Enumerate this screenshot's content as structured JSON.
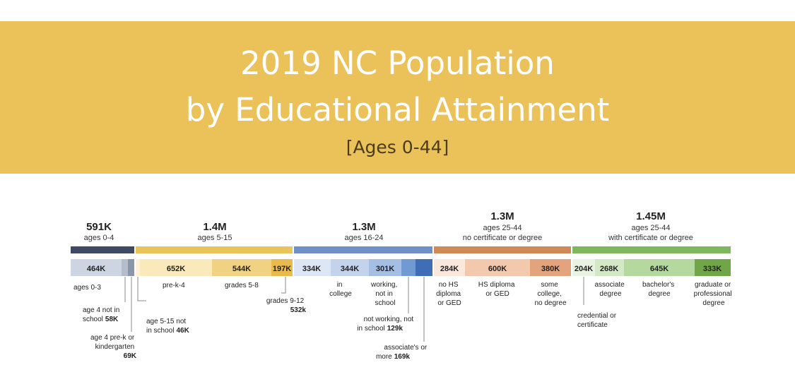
{
  "title": {
    "line1": "2019 NC Population",
    "line2": "by Educational Attainment",
    "subtitle": "[Ages 0-44]"
  },
  "colors": {
    "banner": "#ebc15a",
    "group_ages_0_4": "#3e4a63",
    "group_ages_5_15": "#e8c45a",
    "group_ages_16_24": "#6f91c8",
    "group_ages_25_44_no_cert": "#cf8a57",
    "group_ages_25_44_cert": "#7fb75f"
  },
  "chart_data": {
    "type": "bar",
    "orientation": "horizontal-stacked",
    "groups": [
      {
        "total": "591K",
        "label": "ages 0-4",
        "label2": ""
      },
      {
        "total": "1.4M",
        "label": "ages 5-15",
        "label2": ""
      },
      {
        "total": "1.3M",
        "label": "ages 16-24",
        "label2": ""
      },
      {
        "total": "1.3M",
        "label": "ages 25-44",
        "label2": "no certificate or degree"
      },
      {
        "total": "1.45M",
        "label": "ages 25-44",
        "label2": "with certificate or degree"
      }
    ],
    "segments": [
      {
        "value": 464,
        "label": "464K"
      },
      {
        "value": 58,
        "label": ""
      },
      {
        "value": 69,
        "label": ""
      },
      {
        "value": 652,
        "label": "652K"
      },
      {
        "value": 544,
        "label": "544K"
      },
      {
        "value": 197,
        "label": "197K"
      },
      {
        "value": 334,
        "label": "334K"
      },
      {
        "value": 344,
        "label": "344K"
      },
      {
        "value": 301,
        "label": "301K"
      },
      {
        "value": 129,
        "label": ""
      },
      {
        "value": 169,
        "label": ""
      },
      {
        "value": 284,
        "label": "284K"
      },
      {
        "value": 600,
        "label": "600K"
      },
      {
        "value": 380,
        "label": "380K"
      },
      {
        "value": 204,
        "label": "204K"
      },
      {
        "value": 268,
        "label": "268K"
      },
      {
        "value": 645,
        "label": "645K"
      },
      {
        "value": 333,
        "label": "333K"
      }
    ],
    "annotations": [
      {
        "l1": "ages 0-3",
        "l2": "",
        "l3": "",
        "bold": ""
      },
      {
        "l1": "age 4 not in",
        "l2": "school",
        "l3": "",
        "bold": "58K"
      },
      {
        "l1": "age 4 pre-k or",
        "l2": "kindergarten",
        "l3": "",
        "bold": "69K"
      },
      {
        "l1": "age 5-15 not",
        "l2": "in school",
        "l3": "",
        "bold": "46K"
      },
      {
        "l1": "pre-k-4",
        "l2": "",
        "l3": "",
        "bold": ""
      },
      {
        "l1": "grades 5-8",
        "l2": "",
        "l3": "",
        "bold": ""
      },
      {
        "l1": "grades 9-12",
        "l2": "",
        "l3": "",
        "bold": "532k"
      },
      {
        "l1": "in",
        "l2": "college",
        "l3": "",
        "bold": ""
      },
      {
        "l1": "working,",
        "l2": "not in",
        "l3": "school",
        "bold": ""
      },
      {
        "l1": "not working, not",
        "l2": "in school",
        "l3": "",
        "bold": "129k"
      },
      {
        "l1": "associate's or",
        "l2": "more",
        "l3": "",
        "bold": "169k"
      },
      {
        "l1": "no HS",
        "l2": "diploma",
        "l3": "or GED",
        "bold": ""
      },
      {
        "l1": "HS diploma",
        "l2": "or GED",
        "l3": "",
        "bold": ""
      },
      {
        "l1": "some",
        "l2": "college,",
        "l3": "no degree",
        "bold": ""
      },
      {
        "l1": "credential or",
        "l2": "certificate",
        "l3": "",
        "bold": ""
      },
      {
        "l1": "associate",
        "l2": "degree",
        "l3": "",
        "bold": ""
      },
      {
        "l1": "bachelor's",
        "l2": "degree",
        "l3": "",
        "bold": ""
      },
      {
        "l1": "graduate or",
        "l2": "professional",
        "l3": "degree",
        "bold": ""
      }
    ]
  }
}
